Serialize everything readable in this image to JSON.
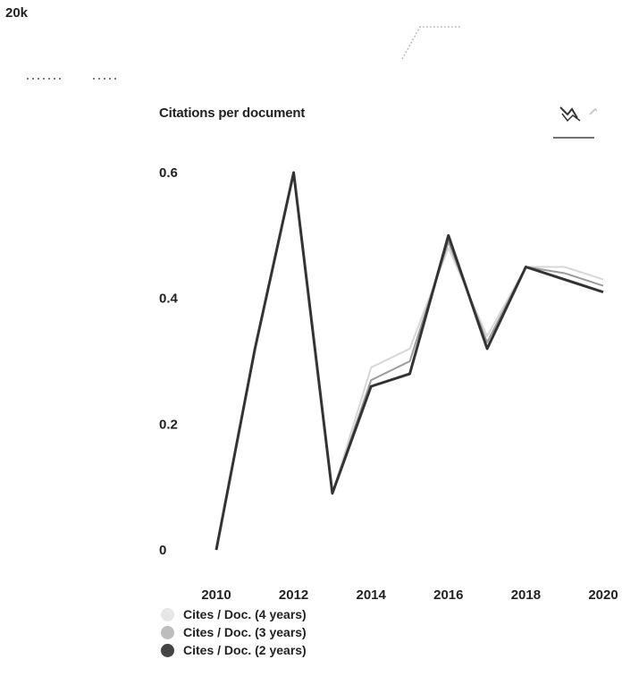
{
  "header": {
    "top_value": "20k"
  },
  "chart_data": {
    "type": "line",
    "title": "Citations per document",
    "xlabel": "",
    "ylabel": "",
    "x": [
      2010,
      2011,
      2012,
      2013,
      2014,
      2015,
      2016,
      2017,
      2018,
      2019,
      2020
    ],
    "x_ticks": [
      "2010",
      "2012",
      "2014",
      "2016",
      "2018",
      "2020"
    ],
    "y_ticks": [
      "0",
      "0.2",
      "0.4",
      "0.6"
    ],
    "xlim": [
      2010,
      2020
    ],
    "ylim": [
      0,
      0.6
    ],
    "grid": false,
    "legend_position": "bottom-left",
    "series": [
      {
        "name": "Cites / Doc. (4 years)",
        "color": "#d7d7d7",
        "values": [
          0.0,
          0.32,
          0.6,
          0.09,
          0.29,
          0.32,
          0.48,
          0.34,
          0.45,
          0.45,
          0.43
        ]
      },
      {
        "name": "Cites / Doc. (3 years)",
        "color": "#9a9a9a",
        "values": [
          0.0,
          0.32,
          0.6,
          0.09,
          0.27,
          0.3,
          0.49,
          0.33,
          0.45,
          0.44,
          0.42
        ]
      },
      {
        "name": "Cites / Doc. (2 years)",
        "color": "#333333",
        "values": [
          0.0,
          0.32,
          0.6,
          0.09,
          0.26,
          0.28,
          0.5,
          0.32,
          0.45,
          0.43,
          0.41
        ]
      }
    ]
  },
  "toggle": {
    "active": "line-chart-icon",
    "inactive": "area-chart-icon"
  }
}
